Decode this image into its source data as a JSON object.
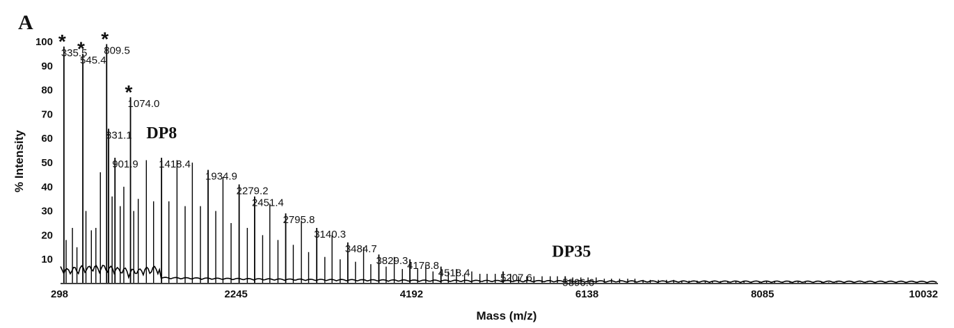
{
  "chart_data": {
    "type": "line",
    "panel_label": "A",
    "xlabel": "Mass (m/z)",
    "ylabel": "% Intensity",
    "xlim": [
      298,
      10032
    ],
    "ylim": [
      0,
      100
    ],
    "x_ticks": [
      298,
      2245,
      4192,
      6138,
      8085,
      10032
    ],
    "y_ticks": [
      10,
      20,
      30,
      40,
      50,
      60,
      70,
      80,
      90,
      100
    ],
    "peaks": [
      {
        "mz": 335.5,
        "intensity": 98,
        "label": "335.5",
        "star": true
      },
      {
        "mz": 545.4,
        "intensity": 95,
        "label": "545.4",
        "star": true
      },
      {
        "mz": 809.5,
        "intensity": 99,
        "label": "809.5",
        "star": true
      },
      {
        "mz": 1074.0,
        "intensity": 77,
        "label": "1074.0",
        "star": true
      },
      {
        "mz": 831.1,
        "intensity": 64,
        "label": "831.1",
        "star": false
      },
      {
        "mz": 901.9,
        "intensity": 52,
        "label": "901.9",
        "star": false
      },
      {
        "mz": 1418.4,
        "intensity": 52,
        "label": "1418.4",
        "star": false
      },
      {
        "mz": 1934.9,
        "intensity": 47,
        "label": "1934.9",
        "star": false
      },
      {
        "mz": 2279.2,
        "intensity": 41,
        "label": "2279.2",
        "star": false
      },
      {
        "mz": 2451.4,
        "intensity": 36,
        "label": "2451.4",
        "star": false
      },
      {
        "mz": 2795.8,
        "intensity": 29,
        "label": "2795.8",
        "star": false
      },
      {
        "mz": 3140.3,
        "intensity": 23,
        "label": "3140.3",
        "star": false
      },
      {
        "mz": 3484.7,
        "intensity": 17,
        "label": "3484.7",
        "star": false
      },
      {
        "mz": 3829.3,
        "intensity": 12,
        "label": "3829.3",
        "star": false
      },
      {
        "mz": 4173.8,
        "intensity": 10,
        "label": "4173.8",
        "star": false
      },
      {
        "mz": 4518.4,
        "intensity": 7,
        "label": "4518.4",
        "star": false
      },
      {
        "mz": 5207.6,
        "intensity": 5,
        "label": "5207.6",
        "star": false
      },
      {
        "mz": 5896.6,
        "intensity": 3,
        "label": "5896.6",
        "star": false
      }
    ],
    "annotations": [
      {
        "text": "DP8",
        "mz": 1250,
        "intensity": 60
      },
      {
        "text": "DP35",
        "mz": 5750,
        "intensity": 11
      }
    ],
    "minor_peaks": [
      {
        "mz": 360,
        "intensity": 18
      },
      {
        "mz": 430,
        "intensity": 23
      },
      {
        "mz": 480,
        "intensity": 15
      },
      {
        "mz": 580,
        "intensity": 30
      },
      {
        "mz": 640,
        "intensity": 22
      },
      {
        "mz": 690,
        "intensity": 23
      },
      {
        "mz": 740,
        "intensity": 46
      },
      {
        "mz": 870,
        "intensity": 36
      },
      {
        "mz": 960,
        "intensity": 32
      },
      {
        "mz": 1000,
        "intensity": 40
      },
      {
        "mz": 1110,
        "intensity": 30
      },
      {
        "mz": 1160,
        "intensity": 35
      },
      {
        "mz": 1250,
        "intensity": 51
      },
      {
        "mz": 1330,
        "intensity": 34
      },
      {
        "mz": 1500,
        "intensity": 34
      },
      {
        "mz": 1590,
        "intensity": 51
      },
      {
        "mz": 1680,
        "intensity": 32
      },
      {
        "mz": 1760,
        "intensity": 50
      },
      {
        "mz": 1850,
        "intensity": 32
      },
      {
        "mz": 2020,
        "intensity": 30
      },
      {
        "mz": 2100,
        "intensity": 44
      },
      {
        "mz": 2190,
        "intensity": 25
      },
      {
        "mz": 2370,
        "intensity": 23
      },
      {
        "mz": 2540,
        "intensity": 20
      },
      {
        "mz": 2620,
        "intensity": 33
      },
      {
        "mz": 2710,
        "intensity": 18
      },
      {
        "mz": 2880,
        "intensity": 16
      },
      {
        "mz": 2970,
        "intensity": 26
      },
      {
        "mz": 3050,
        "intensity": 13
      },
      {
        "mz": 3230,
        "intensity": 11
      },
      {
        "mz": 3310,
        "intensity": 20
      },
      {
        "mz": 3400,
        "intensity": 10
      },
      {
        "mz": 3570,
        "intensity": 9
      },
      {
        "mz": 3660,
        "intensity": 15
      },
      {
        "mz": 3740,
        "intensity": 8
      },
      {
        "mz": 3910,
        "intensity": 7
      },
      {
        "mz": 4000,
        "intensity": 11
      },
      {
        "mz": 4090,
        "intensity": 6
      },
      {
        "mz": 4260,
        "intensity": 6
      },
      {
        "mz": 4350,
        "intensity": 8
      },
      {
        "mz": 4430,
        "intensity": 5
      },
      {
        "mz": 4600,
        "intensity": 5
      },
      {
        "mz": 4690,
        "intensity": 6
      },
      {
        "mz": 4780,
        "intensity": 4
      },
      {
        "mz": 4860,
        "intensity": 5
      },
      {
        "mz": 4950,
        "intensity": 4
      },
      {
        "mz": 5030,
        "intensity": 4
      },
      {
        "mz": 5120,
        "intensity": 4
      },
      {
        "mz": 5290,
        "intensity": 4
      },
      {
        "mz": 5380,
        "intensity": 3
      },
      {
        "mz": 5470,
        "intensity": 3
      },
      {
        "mz": 5550,
        "intensity": 3
      },
      {
        "mz": 5640,
        "intensity": 3
      },
      {
        "mz": 5730,
        "intensity": 3
      },
      {
        "mz": 5810,
        "intensity": 3
      },
      {
        "mz": 5980,
        "intensity": 2.5
      },
      {
        "mz": 6070,
        "intensity": 2.5
      },
      {
        "mz": 6150,
        "intensity": 2.5
      },
      {
        "mz": 6240,
        "intensity": 2.5
      },
      {
        "mz": 6330,
        "intensity": 2
      },
      {
        "mz": 6410,
        "intensity": 2
      },
      {
        "mz": 6500,
        "intensity": 2
      },
      {
        "mz": 6590,
        "intensity": 2
      },
      {
        "mz": 6670,
        "intensity": 2
      },
      {
        "mz": 6760,
        "intensity": 1.5
      },
      {
        "mz": 6840,
        "intensity": 1.5
      },
      {
        "mz": 6930,
        "intensity": 1.5
      },
      {
        "mz": 7020,
        "intensity": 1.5
      },
      {
        "mz": 7100,
        "intensity": 1.5
      },
      {
        "mz": 7190,
        "intensity": 1.2
      },
      {
        "mz": 7270,
        "intensity": 1.2
      },
      {
        "mz": 7360,
        "intensity": 1.2
      },
      {
        "mz": 7450,
        "intensity": 1.2
      },
      {
        "mz": 7530,
        "intensity": 1
      },
      {
        "mz": 7620,
        "intensity": 1
      },
      {
        "mz": 7700,
        "intensity": 1
      },
      {
        "mz": 7790,
        "intensity": 1
      },
      {
        "mz": 7880,
        "intensity": 1
      },
      {
        "mz": 7960,
        "intensity": 0.8
      },
      {
        "mz": 8050,
        "intensity": 0.8
      },
      {
        "mz": 8130,
        "intensity": 0.8
      },
      {
        "mz": 8220,
        "intensity": 0.8
      },
      {
        "mz": 8310,
        "intensity": 0.7
      },
      {
        "mz": 8390,
        "intensity": 0.7
      },
      {
        "mz": 8480,
        "intensity": 0.7
      },
      {
        "mz": 8560,
        "intensity": 0.6
      },
      {
        "mz": 8650,
        "intensity": 0.6
      },
      {
        "mz": 8740,
        "intensity": 0.6
      },
      {
        "mz": 8820,
        "intensity": 0.5
      },
      {
        "mz": 8910,
        "intensity": 0.5
      },
      {
        "mz": 8990,
        "intensity": 0.5
      },
      {
        "mz": 9080,
        "intensity": 0.4
      },
      {
        "mz": 9170,
        "intensity": 0.4
      },
      {
        "mz": 9250,
        "intensity": 0.4
      },
      {
        "mz": 9340,
        "intensity": 0.3
      },
      {
        "mz": 9420,
        "intensity": 0.3
      }
    ],
    "line_color": "#000000",
    "grid": false,
    "legend": "none"
  }
}
